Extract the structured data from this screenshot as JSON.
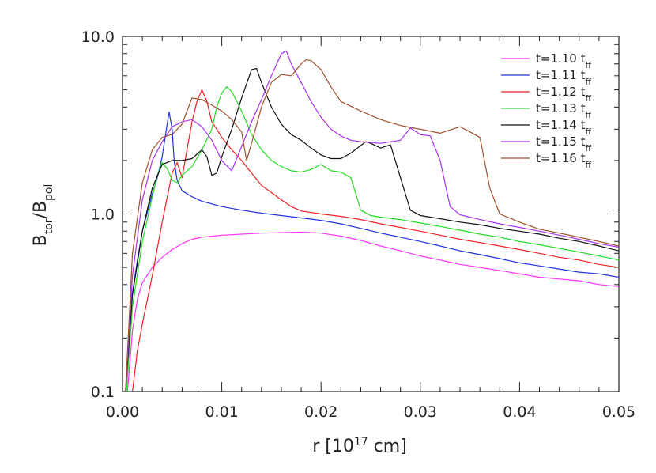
{
  "chart_data": {
    "type": "line",
    "title": "",
    "xlabel": "r [10",
    "xlabel_exponent": "17",
    "xlabel_unit": " cm]",
    "ylabel_main": "B",
    "ylabel_sub": "tor",
    "ylabel_sep": "/B",
    "ylabel_sub2": "pol",
    "xlim": [
      0.0,
      0.05
    ],
    "ylim": [
      0.1,
      10.0
    ],
    "yscale": "log",
    "grid": false,
    "legend_position": "top-right",
    "x_ticks": [
      {
        "value": 0.0,
        "label": "0.00"
      },
      {
        "value": 0.01,
        "label": "0.01"
      },
      {
        "value": 0.02,
        "label": "0.02"
      },
      {
        "value": 0.03,
        "label": "0.03"
      },
      {
        "value": 0.04,
        "label": "0.04"
      },
      {
        "value": 0.05,
        "label": "0.05"
      }
    ],
    "y_ticks": [
      {
        "value": 0.1,
        "label": "0.1"
      },
      {
        "value": 1.0,
        "label": "1.0"
      },
      {
        "value": 10.0,
        "label": "10.0"
      }
    ],
    "series": [
      {
        "name": "t=1.10",
        "name_unit": "t",
        "name_unit_sub": "ff",
        "color": "#ff33ff",
        "points": [
          [
            0.0005,
            0.1
          ],
          [
            0.001,
            0.22
          ],
          [
            0.0015,
            0.33
          ],
          [
            0.002,
            0.41
          ],
          [
            0.003,
            0.5
          ],
          [
            0.004,
            0.57
          ],
          [
            0.005,
            0.63
          ],
          [
            0.006,
            0.68
          ],
          [
            0.007,
            0.72
          ],
          [
            0.008,
            0.74
          ],
          [
            0.01,
            0.76
          ],
          [
            0.012,
            0.77
          ],
          [
            0.014,
            0.78
          ],
          [
            0.016,
            0.785
          ],
          [
            0.018,
            0.79
          ],
          [
            0.02,
            0.78
          ],
          [
            0.022,
            0.75
          ],
          [
            0.024,
            0.71
          ],
          [
            0.026,
            0.66
          ],
          [
            0.028,
            0.62
          ],
          [
            0.03,
            0.58
          ],
          [
            0.032,
            0.55
          ],
          [
            0.034,
            0.52
          ],
          [
            0.036,
            0.5
          ],
          [
            0.038,
            0.48
          ],
          [
            0.04,
            0.46
          ],
          [
            0.042,
            0.44
          ],
          [
            0.044,
            0.43
          ],
          [
            0.046,
            0.42
          ],
          [
            0.048,
            0.4
          ],
          [
            0.05,
            0.39
          ]
        ]
      },
      {
        "name": "t=1.11",
        "name_unit": "t",
        "name_unit_sub": "ff",
        "color": "#2233dd",
        "points": [
          [
            0.0003,
            0.1
          ],
          [
            0.0008,
            0.3
          ],
          [
            0.0015,
            0.55
          ],
          [
            0.002,
            0.8
          ],
          [
            0.003,
            1.3
          ],
          [
            0.0035,
            1.6
          ],
          [
            0.004,
            2.1
          ],
          [
            0.0045,
            3.2
          ],
          [
            0.0047,
            3.75
          ],
          [
            0.005,
            3.0
          ],
          [
            0.0052,
            2.0
          ],
          [
            0.0055,
            1.55
          ],
          [
            0.006,
            1.35
          ],
          [
            0.007,
            1.25
          ],
          [
            0.008,
            1.18
          ],
          [
            0.01,
            1.1
          ],
          [
            0.012,
            1.05
          ],
          [
            0.014,
            1.01
          ],
          [
            0.016,
            0.98
          ],
          [
            0.018,
            0.95
          ],
          [
            0.02,
            0.92
          ],
          [
            0.022,
            0.88
          ],
          [
            0.024,
            0.83
          ],
          [
            0.026,
            0.78
          ],
          [
            0.028,
            0.74
          ],
          [
            0.03,
            0.7
          ],
          [
            0.032,
            0.66
          ],
          [
            0.034,
            0.62
          ],
          [
            0.036,
            0.59
          ],
          [
            0.038,
            0.56
          ],
          [
            0.04,
            0.53
          ],
          [
            0.042,
            0.51
          ],
          [
            0.044,
            0.49
          ],
          [
            0.046,
            0.47
          ],
          [
            0.048,
            0.46
          ],
          [
            0.05,
            0.44
          ]
        ]
      },
      {
        "name": "t=1.12",
        "name_unit": "t",
        "name_unit_sub": "ff",
        "color": "#ee2222",
        "points": [
          [
            0.001,
            0.1
          ],
          [
            0.0015,
            0.17
          ],
          [
            0.002,
            0.24
          ],
          [
            0.003,
            0.45
          ],
          [
            0.004,
            0.9
          ],
          [
            0.005,
            1.7
          ],
          [
            0.0055,
            1.95
          ],
          [
            0.006,
            1.6
          ],
          [
            0.0065,
            2.3
          ],
          [
            0.007,
            3.3
          ],
          [
            0.0075,
            4.3
          ],
          [
            0.008,
            5.0
          ],
          [
            0.0085,
            4.3
          ],
          [
            0.009,
            3.3
          ],
          [
            0.0095,
            3.0
          ],
          [
            0.01,
            2.7
          ],
          [
            0.011,
            2.3
          ],
          [
            0.012,
            2.0
          ],
          [
            0.013,
            1.7
          ],
          [
            0.014,
            1.45
          ],
          [
            0.015,
            1.32
          ],
          [
            0.016,
            1.2
          ],
          [
            0.017,
            1.1
          ],
          [
            0.018,
            1.04
          ],
          [
            0.02,
            1.0
          ],
          [
            0.022,
            0.97
          ],
          [
            0.024,
            0.93
          ],
          [
            0.026,
            0.88
          ],
          [
            0.028,
            0.84
          ],
          [
            0.03,
            0.8
          ],
          [
            0.032,
            0.76
          ],
          [
            0.034,
            0.72
          ],
          [
            0.036,
            0.69
          ],
          [
            0.038,
            0.66
          ],
          [
            0.04,
            0.63
          ],
          [
            0.042,
            0.6
          ],
          [
            0.044,
            0.57
          ],
          [
            0.046,
            0.55
          ],
          [
            0.048,
            0.52
          ],
          [
            0.05,
            0.5
          ]
        ]
      },
      {
        "name": "t=1.13",
        "name_unit": "t",
        "name_unit_sub": "ff",
        "color": "#22dd22",
        "points": [
          [
            0.0004,
            0.1
          ],
          [
            0.001,
            0.3
          ],
          [
            0.002,
            0.7
          ],
          [
            0.003,
            1.25
          ],
          [
            0.0035,
            1.65
          ],
          [
            0.004,
            1.95
          ],
          [
            0.0045,
            1.8
          ],
          [
            0.005,
            1.55
          ],
          [
            0.0055,
            1.5
          ],
          [
            0.006,
            1.65
          ],
          [
            0.007,
            1.85
          ],
          [
            0.008,
            2.3
          ],
          [
            0.009,
            3.0
          ],
          [
            0.0095,
            4.0
          ],
          [
            0.01,
            4.8
          ],
          [
            0.0105,
            5.2
          ],
          [
            0.011,
            4.9
          ],
          [
            0.012,
            3.8
          ],
          [
            0.013,
            2.8
          ],
          [
            0.014,
            2.3
          ],
          [
            0.015,
            2.0
          ],
          [
            0.016,
            1.85
          ],
          [
            0.017,
            1.75
          ],
          [
            0.018,
            1.72
          ],
          [
            0.019,
            1.78
          ],
          [
            0.02,
            1.9
          ],
          [
            0.021,
            1.75
          ],
          [
            0.022,
            1.72
          ],
          [
            0.023,
            1.6
          ],
          [
            0.0235,
            1.3
          ],
          [
            0.024,
            1.05
          ],
          [
            0.025,
            0.98
          ],
          [
            0.026,
            0.96
          ],
          [
            0.028,
            0.93
          ],
          [
            0.03,
            0.89
          ],
          [
            0.032,
            0.85
          ],
          [
            0.034,
            0.81
          ],
          [
            0.036,
            0.77
          ],
          [
            0.038,
            0.74
          ],
          [
            0.04,
            0.7
          ],
          [
            0.042,
            0.67
          ],
          [
            0.044,
            0.64
          ],
          [
            0.046,
            0.61
          ],
          [
            0.048,
            0.58
          ],
          [
            0.05,
            0.55
          ]
        ]
      },
      {
        "name": "t=1.14",
        "name_unit": "t",
        "name_unit_sub": "ff",
        "color": "#111111",
        "points": [
          [
            0.0003,
            0.1
          ],
          [
            0.001,
            0.35
          ],
          [
            0.002,
            0.8
          ],
          [
            0.003,
            1.4
          ],
          [
            0.004,
            1.9
          ],
          [
            0.005,
            2.0
          ],
          [
            0.006,
            2.0
          ],
          [
            0.007,
            2.05
          ],
          [
            0.008,
            2.3
          ],
          [
            0.0085,
            2.1
          ],
          [
            0.009,
            1.65
          ],
          [
            0.0095,
            1.7
          ],
          [
            0.01,
            2.1
          ],
          [
            0.011,
            3.0
          ],
          [
            0.012,
            4.5
          ],
          [
            0.013,
            6.5
          ],
          [
            0.0135,
            6.6
          ],
          [
            0.014,
            5.5
          ],
          [
            0.015,
            4.0
          ],
          [
            0.016,
            3.2
          ],
          [
            0.017,
            2.8
          ],
          [
            0.018,
            2.6
          ],
          [
            0.019,
            2.35
          ],
          [
            0.02,
            2.15
          ],
          [
            0.021,
            2.05
          ],
          [
            0.022,
            2.05
          ],
          [
            0.023,
            2.2
          ],
          [
            0.0245,
            2.55
          ],
          [
            0.025,
            2.5
          ],
          [
            0.026,
            2.35
          ],
          [
            0.027,
            2.45
          ],
          [
            0.028,
            1.6
          ],
          [
            0.029,
            1.05
          ],
          [
            0.03,
            0.98
          ],
          [
            0.032,
            0.94
          ],
          [
            0.034,
            0.9
          ],
          [
            0.036,
            0.87
          ],
          [
            0.038,
            0.83
          ],
          [
            0.04,
            0.8
          ],
          [
            0.042,
            0.77
          ],
          [
            0.044,
            0.73
          ],
          [
            0.046,
            0.7
          ],
          [
            0.048,
            0.66
          ],
          [
            0.05,
            0.62
          ]
        ]
      },
      {
        "name": "t=1.15",
        "name_unit": "t",
        "name_unit_sub": "ff",
        "color": "#aa33ee",
        "points": [
          [
            0.0003,
            0.1
          ],
          [
            0.001,
            0.45
          ],
          [
            0.002,
            1.2
          ],
          [
            0.003,
            2.0
          ],
          [
            0.004,
            2.55
          ],
          [
            0.005,
            3.1
          ],
          [
            0.006,
            3.3
          ],
          [
            0.007,
            3.4
          ],
          [
            0.008,
            3.1
          ],
          [
            0.009,
            2.6
          ],
          [
            0.01,
            2.0
          ],
          [
            0.011,
            1.75
          ],
          [
            0.012,
            2.4
          ],
          [
            0.013,
            3.3
          ],
          [
            0.014,
            4.4
          ],
          [
            0.015,
            6.0
          ],
          [
            0.016,
            8.0
          ],
          [
            0.0165,
            8.3
          ],
          [
            0.017,
            7.0
          ],
          [
            0.018,
            5.5
          ],
          [
            0.019,
            4.3
          ],
          [
            0.02,
            3.5
          ],
          [
            0.021,
            3.0
          ],
          [
            0.022,
            2.75
          ],
          [
            0.023,
            2.6
          ],
          [
            0.024,
            2.55
          ],
          [
            0.026,
            2.5
          ],
          [
            0.028,
            2.6
          ],
          [
            0.029,
            3.05
          ],
          [
            0.03,
            2.8
          ],
          [
            0.031,
            2.75
          ],
          [
            0.032,
            2.0
          ],
          [
            0.033,
            1.1
          ],
          [
            0.034,
            0.99
          ],
          [
            0.036,
            0.93
          ],
          [
            0.038,
            0.88
          ],
          [
            0.04,
            0.84
          ],
          [
            0.042,
            0.8
          ],
          [
            0.044,
            0.76
          ],
          [
            0.046,
            0.72
          ],
          [
            0.048,
            0.68
          ],
          [
            0.05,
            0.65
          ]
        ]
      },
      {
        "name": "t=1.16",
        "name_unit": "t",
        "name_unit_sub": "ff",
        "color": "#a0522d",
        "points": [
          [
            0.0003,
            0.1
          ],
          [
            0.001,
            0.6
          ],
          [
            0.002,
            1.5
          ],
          [
            0.003,
            2.3
          ],
          [
            0.004,
            2.7
          ],
          [
            0.005,
            2.8
          ],
          [
            0.006,
            3.2
          ],
          [
            0.007,
            4.5
          ],
          [
            0.008,
            4.4
          ],
          [
            0.009,
            4.1
          ],
          [
            0.01,
            3.8
          ],
          [
            0.011,
            3.4
          ],
          [
            0.012,
            2.9
          ],
          [
            0.0125,
            2.0
          ],
          [
            0.013,
            2.5
          ],
          [
            0.014,
            4.0
          ],
          [
            0.015,
            5.5
          ],
          [
            0.016,
            6.1
          ],
          [
            0.017,
            6.0
          ],
          [
            0.018,
            7.0
          ],
          [
            0.0185,
            7.4
          ],
          [
            0.019,
            7.3
          ],
          [
            0.02,
            6.5
          ],
          [
            0.021,
            5.2
          ],
          [
            0.022,
            4.3
          ],
          [
            0.024,
            3.8
          ],
          [
            0.026,
            3.4
          ],
          [
            0.028,
            3.15
          ],
          [
            0.03,
            3.0
          ],
          [
            0.032,
            2.85
          ],
          [
            0.034,
            3.1
          ],
          [
            0.035,
            2.9
          ],
          [
            0.036,
            2.7
          ],
          [
            0.037,
            1.4
          ],
          [
            0.038,
            1.0
          ],
          [
            0.04,
            0.9
          ],
          [
            0.042,
            0.82
          ],
          [
            0.044,
            0.78
          ],
          [
            0.046,
            0.74
          ],
          [
            0.048,
            0.7
          ],
          [
            0.05,
            0.66
          ]
        ]
      }
    ]
  }
}
